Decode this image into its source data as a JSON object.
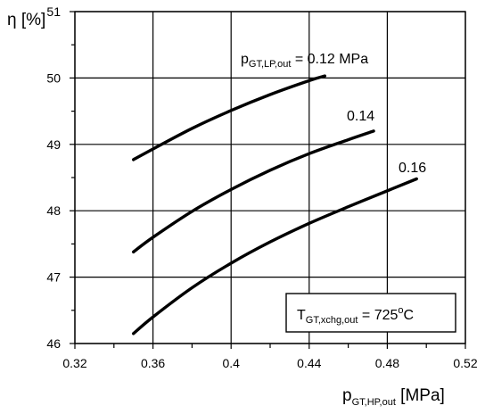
{
  "chart_data": {
    "type": "line",
    "ylabel": {
      "main": "η [%]"
    },
    "xlabel": {
      "main": "p",
      "sub": "GT,HP,out",
      "unit": " [MPa]"
    },
    "xlim": [
      0.32,
      0.52
    ],
    "ylim": [
      46,
      51
    ],
    "xticks": [
      "0.32",
      "0.36",
      "0.4",
      "0.44",
      "0.48",
      "0.52"
    ],
    "xtick_values": [
      0.32,
      0.36,
      0.4,
      0.44,
      0.48,
      0.52
    ],
    "xminor_ticks": [
      0.34,
      0.38,
      0.42,
      0.46,
      0.5
    ],
    "yticks": [
      "46",
      "47",
      "48",
      "49",
      "50",
      "51"
    ],
    "ytick_values": [
      46,
      47,
      48,
      49,
      50,
      51
    ],
    "grid": true,
    "series": [
      {
        "label_main": "p",
        "label_sub": "GT,LP,out",
        "label_value": " = 0.12 MPa",
        "x": [
          0.35,
          0.36,
          0.38,
          0.4,
          0.42,
          0.44,
          0.448
        ],
        "y": [
          48.77,
          48.93,
          49.24,
          49.51,
          49.75,
          49.96,
          50.03
        ]
      },
      {
        "label_text": "0.14",
        "x": [
          0.35,
          0.36,
          0.38,
          0.4,
          0.42,
          0.44,
          0.46,
          0.473
        ],
        "y": [
          47.38,
          47.6,
          47.99,
          48.32,
          48.61,
          48.86,
          49.07,
          49.2
        ]
      },
      {
        "label_text": "0.16",
        "x": [
          0.35,
          0.36,
          0.38,
          0.4,
          0.42,
          0.44,
          0.46,
          0.48,
          0.495
        ],
        "y": [
          46.15,
          46.4,
          46.84,
          47.21,
          47.53,
          47.81,
          48.06,
          48.3,
          48.48
        ]
      }
    ],
    "annotation_box": {
      "main": "T",
      "sub": "GT,xchg,out",
      "value": " = 725",
      "sup": "o",
      "unit": "C"
    }
  }
}
